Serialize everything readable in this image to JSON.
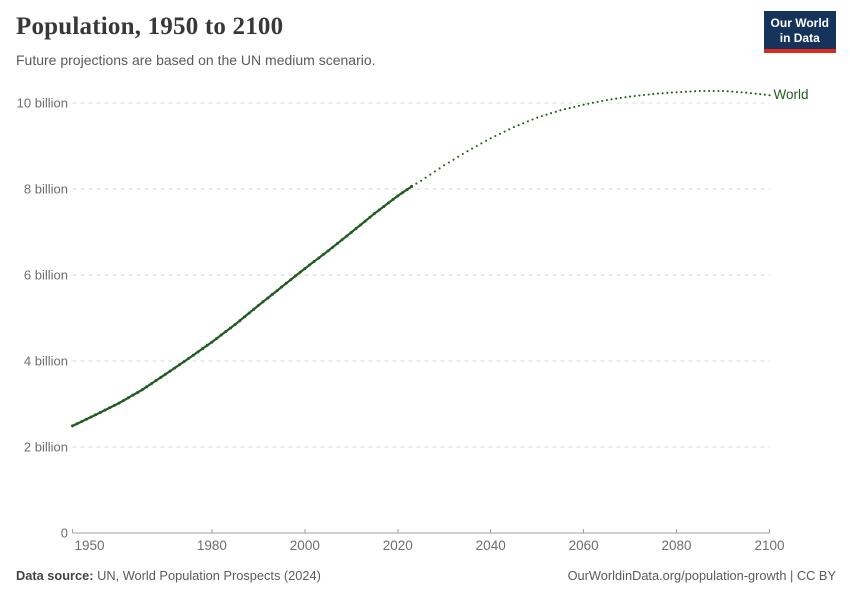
{
  "header": {
    "title": "Population, 1950 to 2100",
    "subtitle": "Future projections are based on the UN medium scenario."
  },
  "logo": {
    "line1": "Our World",
    "line2": "in Data",
    "bg_color": "#16335b",
    "accent_color": "#dc2a20"
  },
  "footer": {
    "datasource_label": "Data source:",
    "datasource_value": "UN, World Population Prospects (2024)",
    "attribution": "OurWorldinData.org/population-growth | CC BY"
  },
  "colors": {
    "gridline": "#dadada",
    "axis": "#a1a1a1",
    "tick_label": "#6e6e6e",
    "title": "#383838",
    "subtitle": "#5b5b5b"
  },
  "chart_data": {
    "type": "line",
    "title": "Population, 1950 to 2100",
    "subtitle": "Future projections are based on the UN medium scenario.",
    "xlabel": "",
    "ylabel": "",
    "xlim": [
      1950,
      2100
    ],
    "ylim": [
      0,
      10.6
    ],
    "grid": "horizontal-dashed",
    "legend_position": "end-of-line",
    "x_ticks": [
      1950,
      1980,
      2000,
      2020,
      2040,
      2060,
      2080,
      2100
    ],
    "y_ticks": [
      {
        "value": 0,
        "label": "0"
      },
      {
        "value": 2,
        "label": "2 billion"
      },
      {
        "value": 4,
        "label": "4 billion"
      },
      {
        "value": 6,
        "label": "6 billion"
      },
      {
        "value": 8,
        "label": "8 billion"
      },
      {
        "value": 10,
        "label": "10 billion"
      }
    ],
    "series": [
      {
        "name": "World",
        "color": "#215c21",
        "unit": "billion",
        "style_history": "dense-dotted",
        "style_projection": "dotted",
        "projection_start": 2024,
        "points": [
          [
            1950,
            2.49
          ],
          [
            1955,
            2.75
          ],
          [
            1960,
            3.02
          ],
          [
            1965,
            3.33
          ],
          [
            1970,
            3.69
          ],
          [
            1975,
            4.06
          ],
          [
            1980,
            4.44
          ],
          [
            1985,
            4.85
          ],
          [
            1990,
            5.29
          ],
          [
            1995,
            5.72
          ],
          [
            2000,
            6.15
          ],
          [
            2005,
            6.56
          ],
          [
            2010,
            6.99
          ],
          [
            2015,
            7.43
          ],
          [
            2020,
            7.84
          ],
          [
            2023,
            8.06
          ],
          [
            2025,
            8.19
          ],
          [
            2030,
            8.55
          ],
          [
            2035,
            8.88
          ],
          [
            2040,
            9.18
          ],
          [
            2045,
            9.44
          ],
          [
            2050,
            9.66
          ],
          [
            2055,
            9.83
          ],
          [
            2060,
            9.96
          ],
          [
            2065,
            10.07
          ],
          [
            2070,
            10.15
          ],
          [
            2075,
            10.21
          ],
          [
            2080,
            10.25
          ],
          [
            2085,
            10.28
          ],
          [
            2090,
            10.28
          ],
          [
            2095,
            10.24
          ],
          [
            2100,
            10.18
          ]
        ]
      }
    ]
  }
}
